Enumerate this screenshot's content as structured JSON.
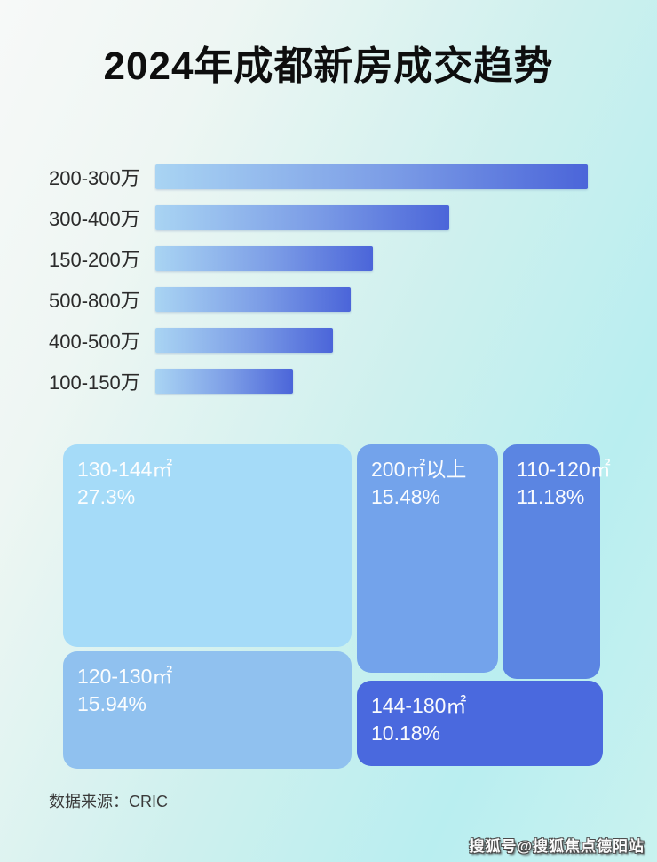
{
  "page": {
    "title": "2024年成都新房成交趋势",
    "source_label": "数据来源：CRIC",
    "watermark": "搜狐号@搜狐焦点德阳站",
    "colors": {
      "background_top_left": "#f6f8f7",
      "background_cyan": "#bceef0",
      "bar_gradient_start": "#a9d4f3",
      "bar_gradient_end": "#4b65d9",
      "title_text": "#0e0e0e",
      "label_text": "#2b2b2b",
      "treemap_text": "#ffffff"
    }
  },
  "chart_data": [
    {
      "type": "bar",
      "orientation": "horizontal",
      "title": "2024年成都新房成交趋势",
      "categories": [
        "200-300万",
        "300-400万",
        "150-200万",
        "500-800万",
        "400-500万",
        "100-150万"
      ],
      "values_percent_of_max": [
        100,
        68,
        50.3,
        45.2,
        41.1,
        31.8
      ],
      "value_labels_shown": false,
      "axis_shown": false,
      "grid": false,
      "legend": "none"
    },
    {
      "type": "treemap",
      "title": "",
      "items": [
        {
          "label": "130-144㎡",
          "pct": "27.3%",
          "value": 27.3,
          "color": "#a5dbf8"
        },
        {
          "label": "120-130㎡",
          "pct": "15.94%",
          "value": 15.94,
          "color": "#90c1ef"
        },
        {
          "label": "200㎡以上",
          "pct": "15.48%",
          "value": 15.48,
          "color": "#73a3eb"
        },
        {
          "label": "110-120㎡",
          "pct": "11.18%",
          "value": 11.18,
          "color": "#5b85e2"
        },
        {
          "label": "144-180㎡",
          "pct": "10.18%",
          "value": 10.18,
          "color": "#4a69de"
        }
      ]
    }
  ]
}
